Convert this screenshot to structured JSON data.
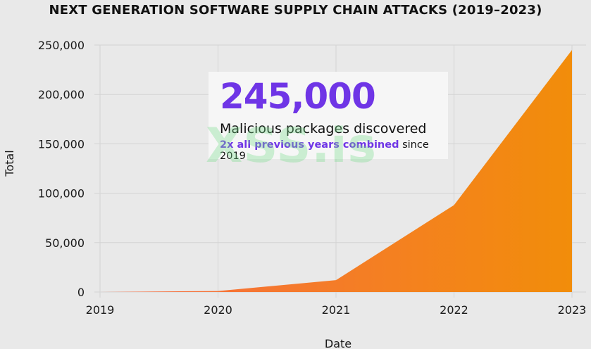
{
  "chart_data": {
    "type": "area",
    "title": "NEXT GENERATION SOFTWARE SUPPLY CHAIN ATTACKS (2019–2023)",
    "xlabel": "Date",
    "ylabel": "Total",
    "x": [
      "2019",
      "2020",
      "2021",
      "2022",
      "2023"
    ],
    "values": [
      0,
      1000,
      12000,
      88000,
      245000
    ],
    "ylim": [
      0,
      250000
    ],
    "yticks": [
      "0",
      "50,000",
      "100,000",
      "150,000",
      "200,000",
      "250,000"
    ],
    "ytick_values": [
      0,
      50000,
      100000,
      150000,
      200000,
      250000
    ],
    "grid": true,
    "colors": {
      "fill_start": "#f76b45",
      "fill_end": "#f28d0a",
      "accent": "#6f35e6"
    }
  },
  "callout": {
    "value": "245,000",
    "line1": "Malicious packages discovered",
    "line2_highlight": "2x all previous years combined",
    "line2_rest": " since 2019"
  },
  "watermark": "XSS.is"
}
